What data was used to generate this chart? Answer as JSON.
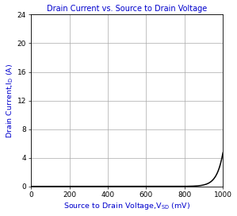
{
  "title": "Drain Current vs. Source to Drain Voltage",
  "xlabel_main": "Source to Drain Voltage,V",
  "xlabel_sub": "SD",
  "xlabel_unit": " (mV)",
  "ylabel_main": "Drain Current,I",
  "ylabel_sub": "D",
  "ylabel_unit": " (A)",
  "xlim": [
    0,
    1000
  ],
  "ylim": [
    0,
    24
  ],
  "xticks": [
    0,
    200,
    400,
    600,
    800,
    1000
  ],
  "yticks": [
    0,
    4,
    8,
    12,
    16,
    20,
    24
  ],
  "title_color": "#0000cd",
  "xlabel_color": "#0000cd",
  "ylabel_color": "#0000cd",
  "curve_color": "#000000",
  "grid_color": "#aaaaaa",
  "background_color": "#ffffff",
  "title_fontsize": 7.0,
  "axis_label_fontsize": 6.8,
  "tick_fontsize": 6.5,
  "curve_linewidth": 1.1,
  "vt": 595,
  "scale": 1.5e-05,
  "eta": 32.0
}
